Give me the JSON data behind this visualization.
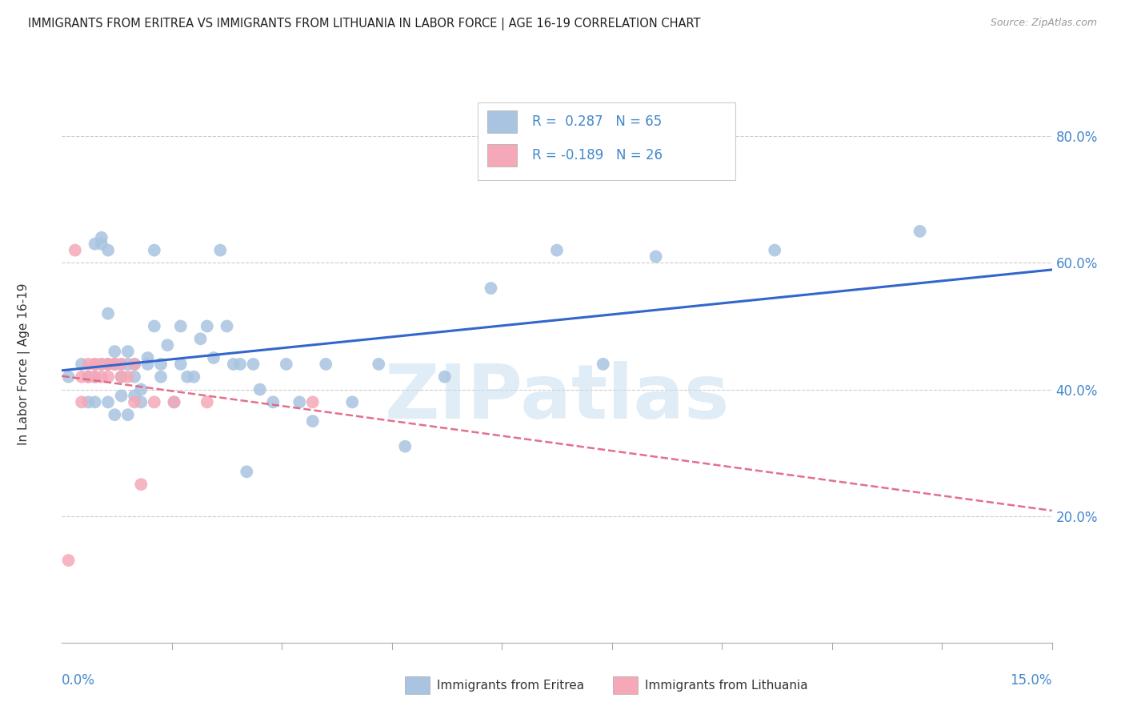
{
  "title": "IMMIGRANTS FROM ERITREA VS IMMIGRANTS FROM LITHUANIA IN LABOR FORCE | AGE 16-19 CORRELATION CHART",
  "source": "Source: ZipAtlas.com",
  "ylabel": "In Labor Force | Age 16-19",
  "ytick_vals": [
    0.2,
    0.4,
    0.6,
    0.8
  ],
  "ytick_labels": [
    "20.0%",
    "40.0%",
    "60.0%",
    "80.0%"
  ],
  "xmin": 0.0,
  "xmax": 0.15,
  "ymin": 0.0,
  "ymax": 0.88,
  "eritrea_color": "#a8c4e0",
  "lithuania_color": "#f4a8b8",
  "eritrea_line_color": "#3366cc",
  "lithuania_line_color": "#e06080",
  "watermark": "ZIPatlas",
  "eritrea_scatter_x": [
    0.001,
    0.003,
    0.004,
    0.004,
    0.005,
    0.005,
    0.005,
    0.006,
    0.006,
    0.006,
    0.007,
    0.007,
    0.007,
    0.007,
    0.008,
    0.008,
    0.008,
    0.009,
    0.009,
    0.009,
    0.01,
    0.01,
    0.01,
    0.011,
    0.011,
    0.011,
    0.012,
    0.012,
    0.013,
    0.013,
    0.014,
    0.014,
    0.015,
    0.015,
    0.016,
    0.017,
    0.018,
    0.018,
    0.019,
    0.02,
    0.021,
    0.022,
    0.023,
    0.024,
    0.025,
    0.026,
    0.027,
    0.028,
    0.029,
    0.03,
    0.032,
    0.034,
    0.036,
    0.038,
    0.04,
    0.044,
    0.048,
    0.052,
    0.058,
    0.065,
    0.075,
    0.082,
    0.09,
    0.108,
    0.13
  ],
  "eritrea_scatter_y": [
    0.42,
    0.44,
    0.42,
    0.38,
    0.63,
    0.42,
    0.38,
    0.64,
    0.63,
    0.44,
    0.62,
    0.44,
    0.38,
    0.52,
    0.44,
    0.46,
    0.36,
    0.44,
    0.42,
    0.39,
    0.44,
    0.46,
    0.36,
    0.44,
    0.42,
    0.39,
    0.4,
    0.38,
    0.44,
    0.45,
    0.5,
    0.62,
    0.44,
    0.42,
    0.47,
    0.38,
    0.5,
    0.44,
    0.42,
    0.42,
    0.48,
    0.5,
    0.45,
    0.62,
    0.5,
    0.44,
    0.44,
    0.27,
    0.44,
    0.4,
    0.38,
    0.44,
    0.38,
    0.35,
    0.44,
    0.38,
    0.44,
    0.31,
    0.42,
    0.56,
    0.62,
    0.44,
    0.61,
    0.62,
    0.65
  ],
  "lithuania_scatter_x": [
    0.001,
    0.002,
    0.003,
    0.003,
    0.004,
    0.004,
    0.005,
    0.005,
    0.005,
    0.006,
    0.006,
    0.007,
    0.007,
    0.007,
    0.008,
    0.008,
    0.009,
    0.009,
    0.01,
    0.011,
    0.011,
    0.012,
    0.014,
    0.017,
    0.022,
    0.038
  ],
  "lithuania_scatter_y": [
    0.13,
    0.62,
    0.38,
    0.42,
    0.44,
    0.42,
    0.44,
    0.44,
    0.42,
    0.44,
    0.42,
    0.44,
    0.42,
    0.44,
    0.44,
    0.44,
    0.42,
    0.44,
    0.42,
    0.38,
    0.44,
    0.25,
    0.38,
    0.38,
    0.38,
    0.38
  ]
}
